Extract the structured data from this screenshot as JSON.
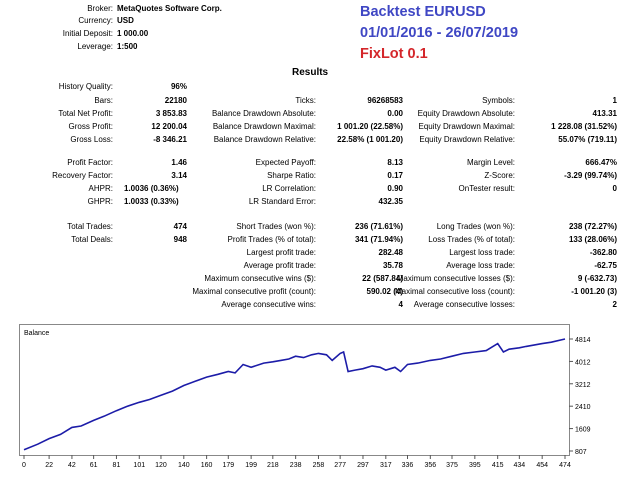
{
  "header": {
    "broker_label": "Broker:",
    "broker": "MetaQuotes Software Corp.",
    "currency_label": "Currency:",
    "currency": "USD",
    "deposit_label": "Initial Deposit:",
    "deposit": "1 000.00",
    "leverage_label": "Leverage:",
    "leverage": "1:500"
  },
  "banner": {
    "line1": "Backtest EURUSD",
    "line2": "01/01/2016 - 26/07/2019",
    "line3": "FixLot 0.1",
    "line1_color": "#3f47c4",
    "line3_color": "#d4262a"
  },
  "results_title": "Results",
  "stats": {
    "history_quality_label": "History Quality:",
    "history_quality": "96%",
    "bars_label": "Bars:",
    "bars": "22180",
    "ticks_label": "Ticks:",
    "ticks": "96268583",
    "symbols_label": "Symbols:",
    "symbols": "1",
    "net_profit_label": "Total Net Profit:",
    "net_profit": "3 853.83",
    "bal_dd_abs_label": "Balance Drawdown Absolute:",
    "bal_dd_abs": "0.00",
    "eq_dd_abs_label": "Equity Drawdown Absolute:",
    "eq_dd_abs": "413.31",
    "gross_profit_label": "Gross Profit:",
    "gross_profit": "12 200.04",
    "bal_dd_max_label": "Balance Drawdown Maximal:",
    "bal_dd_max": "1 001.20 (22.58%)",
    "eq_dd_max_label": "Equity Drawdown Maximal:",
    "eq_dd_max": "1 228.08 (31.52%)",
    "gross_loss_label": "Gross Loss:",
    "gross_loss": "-8 346.21",
    "bal_dd_rel_label": "Balance Drawdown Relative:",
    "bal_dd_rel": "22.58% (1 001.20)",
    "eq_dd_rel_label": "Equity Drawdown Relative:",
    "eq_dd_rel": "55.07% (719.11)",
    "profit_factor_label": "Profit Factor:",
    "profit_factor": "1.46",
    "expected_payoff_label": "Expected Payoff:",
    "expected_payoff": "8.13",
    "margin_level_label": "Margin Level:",
    "margin_level": "666.47%",
    "recovery_factor_label": "Recovery Factor:",
    "recovery_factor": "3.14",
    "sharpe_label": "Sharpe Ratio:",
    "sharpe": "0.17",
    "zscore_label": "Z-Score:",
    "zscore": "-3.29 (99.74%)",
    "ahpr_label": "AHPR:",
    "ahpr": "1.0036 (0.36%)",
    "lr_corr_label": "LR Correlation:",
    "lr_corr": "0.90",
    "ontester_label": "OnTester result:",
    "ontester": "0",
    "ghpr_label": "GHPR:",
    "ghpr": "1.0033 (0.33%)",
    "lr_std_label": "LR Standard Error:",
    "lr_std": "432.35",
    "total_trades_label": "Total Trades:",
    "total_trades": "474",
    "short_trades_label": "Short Trades (won %):",
    "short_trades": "236 (71.61%)",
    "long_trades_label": "Long Trades (won %):",
    "long_trades": "238 (72.27%)",
    "total_deals_label": "Total Deals:",
    "total_deals": "948",
    "profit_trades_label": "Profit Trades (% of total):",
    "profit_trades": "341 (71.94%)",
    "loss_trades_label": "Loss Trades (% of total):",
    "loss_trades": "133 (28.06%)",
    "largest_profit_label": "Largest profit trade:",
    "largest_profit": "282.48",
    "largest_loss_label": "Largest loss trade:",
    "largest_loss": "-362.80",
    "avg_profit_label": "Average profit trade:",
    "avg_profit": "35.78",
    "avg_loss_label": "Average loss trade:",
    "avg_loss": "-62.75",
    "max_cons_wins_label": "Maximum consecutive wins ($):",
    "max_cons_wins": "22 (587.84)",
    "max_cons_losses_label": "Maximum consecutive losses ($):",
    "max_cons_losses": "9 (-632.73)",
    "maximal_cons_profit_label": "Maximal consecutive profit (count):",
    "maximal_cons_profit": "590.02 (4)",
    "maximal_cons_loss_label": "Maximal consecutive loss (count):",
    "maximal_cons_loss": "-1 001.20 (3)",
    "avg_cons_wins_label": "Average consecutive wins:",
    "avg_cons_wins": "4",
    "avg_cons_losses_label": "Average consecutive losses:",
    "avg_cons_losses": "2"
  },
  "chart_data": {
    "type": "line",
    "title": "Balance",
    "line_color": "#1c1ca8",
    "x_ticks": [
      0,
      22,
      42,
      61,
      81,
      101,
      120,
      140,
      160,
      179,
      199,
      218,
      238,
      258,
      277,
      297,
      317,
      336,
      356,
      375,
      395,
      415,
      434,
      454,
      474
    ],
    "y_ticks": [
      807,
      1609,
      2410,
      3212,
      4012,
      4814
    ],
    "xlim": [
      0,
      474
    ],
    "ylim": [
      807,
      4814
    ],
    "series": [
      {
        "x": [
          0,
          12,
          22,
          32,
          42,
          50,
          61,
          70,
          81,
          90,
          101,
          110,
          120,
          130,
          140,
          150,
          160,
          170,
          179,
          185,
          192,
          199,
          210,
          218,
          225,
          232,
          238,
          245,
          252,
          258,
          265,
          270,
          277,
          280,
          284,
          290,
          297,
          305,
          312,
          317,
          325,
          330,
          336,
          345,
          356,
          365,
          375,
          385,
          395,
          405,
          415,
          420,
          425,
          434,
          440,
          454,
          462,
          474
        ],
        "y": [
          850,
          1050,
          1250,
          1400,
          1650,
          1700,
          1900,
          2050,
          2250,
          2400,
          2550,
          2650,
          2800,
          2950,
          3150,
          3300,
          3450,
          3550,
          3650,
          3600,
          3900,
          3800,
          3950,
          4000,
          4050,
          4100,
          4200,
          4150,
          4250,
          4300,
          4250,
          4050,
          4300,
          4350,
          3650,
          3700,
          3750,
          3850,
          3800,
          3700,
          3800,
          3650,
          3900,
          3950,
          4050,
          4100,
          4200,
          4300,
          4350,
          4400,
          4650,
          4350,
          4450,
          4500,
          4550,
          4650,
          4700,
          4814
        ]
      }
    ]
  }
}
